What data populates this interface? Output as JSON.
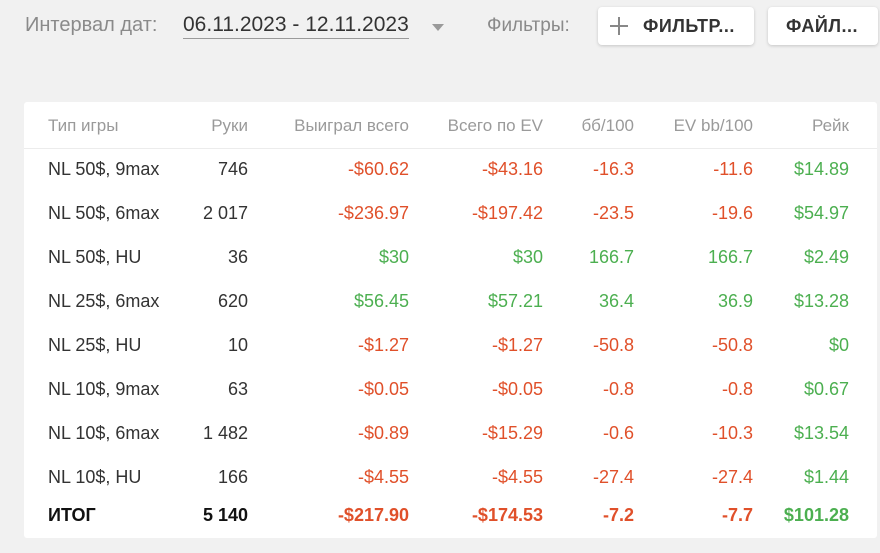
{
  "topbar": {
    "interval_label": "Интервал дат:",
    "interval_value": "06.11.2023 - 12.11.2023",
    "filters_label": "Фильтры:",
    "filters_button": "ФИЛЬТР...",
    "file_button": "ФАЙЛ..."
  },
  "table": {
    "columns": [
      "Тип игры",
      "Руки",
      "Выиграл всего",
      "Всего по EV",
      "бб/100",
      "EV bb/100",
      "Рейк"
    ],
    "rows": [
      [
        "NL 50$, 9max",
        "746",
        "-$60.62",
        "-$43.16",
        "-16.3",
        "-11.6",
        "$14.89"
      ],
      [
        "NL 50$, 6max",
        "2 017",
        "-$236.97",
        "-$197.42",
        "-23.5",
        "-19.6",
        "$54.97"
      ],
      [
        "NL 50$, HU",
        "36",
        "$30",
        "$30",
        "166.7",
        "166.7",
        "$2.49"
      ],
      [
        "NL 25$, 6max",
        "620",
        "$56.45",
        "$57.21",
        "36.4",
        "36.9",
        "$13.28"
      ],
      [
        "NL 25$, HU",
        "10",
        "-$1.27",
        "-$1.27",
        "-50.8",
        "-50.8",
        "$0"
      ],
      [
        "NL 10$, 9max",
        "63",
        "-$0.05",
        "-$0.05",
        "-0.8",
        "-0.8",
        "$0.67"
      ],
      [
        "NL 10$, 6max",
        "1 482",
        "-$0.89",
        "-$15.29",
        "-0.6",
        "-10.3",
        "$13.54"
      ],
      [
        "NL 10$, HU",
        "166",
        "-$4.55",
        "-$4.55",
        "-27.4",
        "-27.4",
        "$1.44"
      ]
    ],
    "total": [
      "ИТОГ",
      "5 140",
      "-$217.90",
      "-$174.53",
      "-7.2",
      "-7.7",
      "$101.28"
    ]
  },
  "colors": {
    "negative": "#e0502a",
    "positive": "#4caf50",
    "background": "#f1f1f1"
  }
}
